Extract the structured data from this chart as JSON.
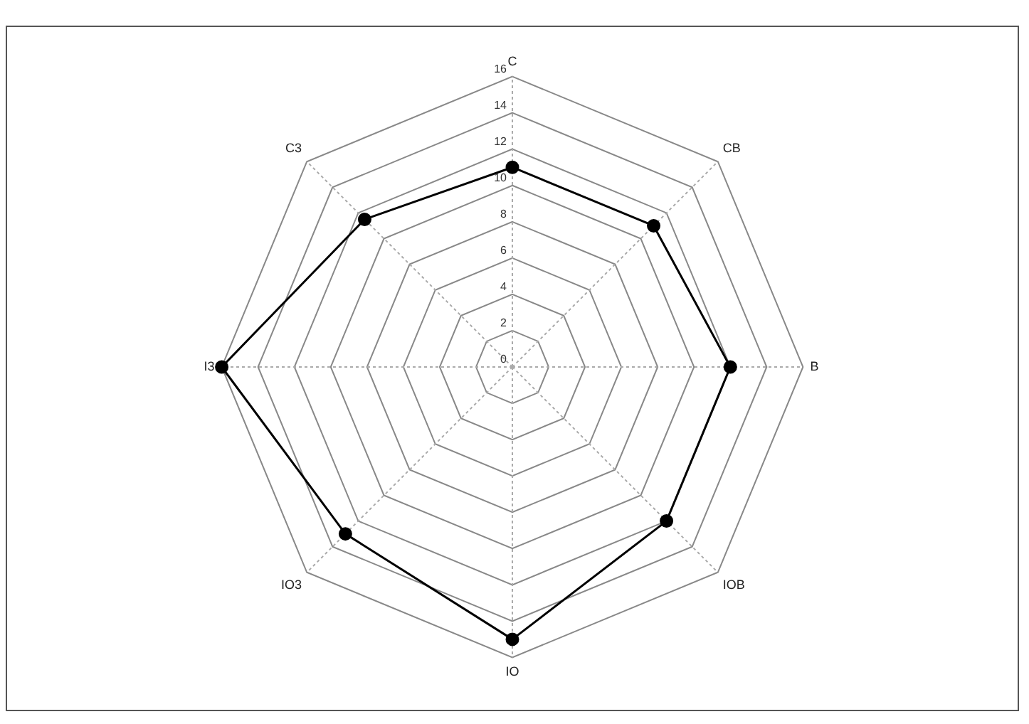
{
  "chart_data": {
    "type": "radar",
    "categories": [
      "C",
      "CB",
      "B",
      "IOB",
      "IO",
      "IO3",
      "I3",
      "C3"
    ],
    "series": [
      {
        "color": "#000000",
        "values": [
          11,
          11,
          12,
          12,
          15,
          13,
          16,
          11.5
        ]
      }
    ],
    "ylim": [
      0,
      16
    ],
    "yticks": [
      0,
      2,
      4,
      6,
      8,
      10,
      12,
      14,
      16
    ],
    "marker": "circle",
    "line_style": "solid",
    "legend": false
  }
}
